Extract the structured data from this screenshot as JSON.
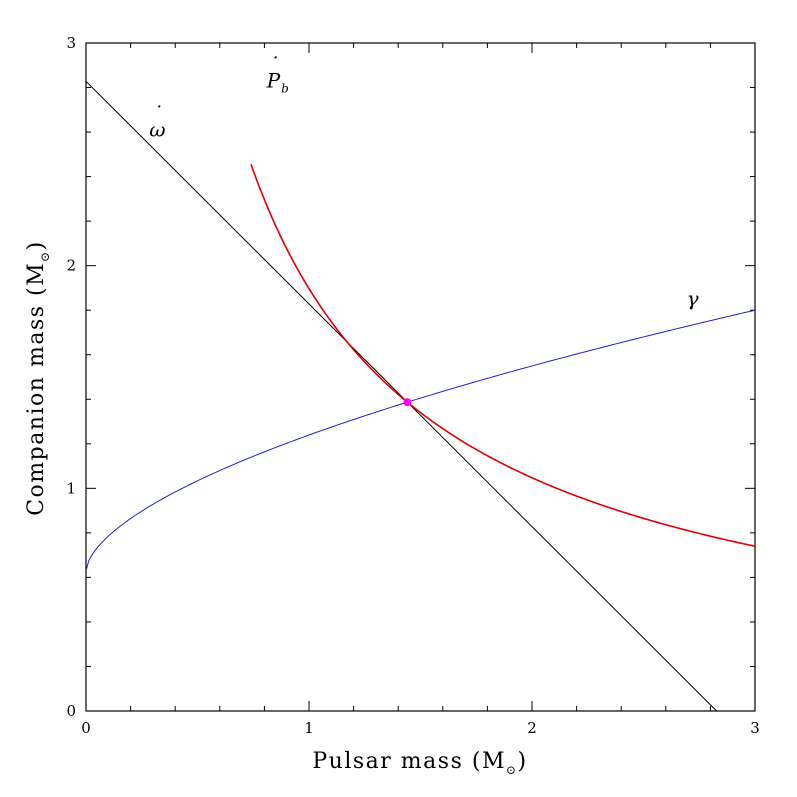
{
  "chart_data": {
    "type": "line",
    "xlabel": "Pulsar mass",
    "ylabel": "Companion mass",
    "unit_symbol": "M",
    "unit_subscript": "⊙",
    "xlim": [
      0,
      3
    ],
    "ylim": [
      0,
      3
    ],
    "x_ticks": [
      0,
      1,
      2,
      3
    ],
    "y_ticks": [
      0,
      1,
      2,
      3
    ],
    "minor_tick_step": 0.2,
    "grid": false,
    "series": [
      {
        "name": "omega-dot",
        "label_base": "ω",
        "label_dot": "˙",
        "color": "#000000",
        "kind": "linear",
        "total_mass": 2.828,
        "label_at": [
          0.32,
          2.58
        ]
      },
      {
        "name": "Pb-dot",
        "label_base": "P",
        "label_dot": "˙",
        "label_sub": "b",
        "color": "#e00000",
        "kind": "pbdot",
        "x_start": 0.74,
        "x_end": 3.0,
        "points": [
          [
            1.441,
            1.387
          ],
          [
            3.0,
            0.74
          ]
        ],
        "label_at": [
          0.86,
          2.8
        ]
      },
      {
        "name": "gamma",
        "label_base": "γ",
        "color": "#2020cc",
        "kind": "gamma",
        "points": [
          [
            0.0,
            0.63
          ],
          [
            1.441,
            1.387
          ],
          [
            3.0,
            1.8
          ]
        ],
        "label_at": [
          2.72,
          1.82
        ]
      }
    ],
    "intersection": {
      "x": 1.441,
      "y": 1.387,
      "color": "#ff00ff"
    }
  }
}
